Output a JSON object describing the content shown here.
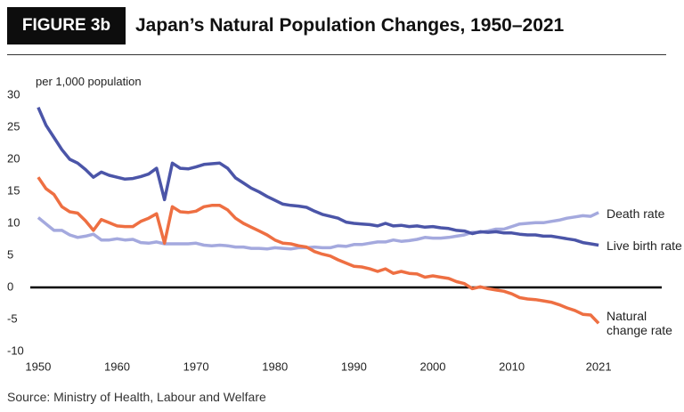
{
  "chart_data": {
    "type": "line",
    "figure_label": "FIGURE 3b",
    "title": "Japan’s Natural Population Changes, 1950–2021",
    "y_label": "per 1,000 population",
    "source": "Source: Ministry of Health, Labour and Welfare",
    "x": [
      1950,
      1951,
      1952,
      1953,
      1954,
      1955,
      1956,
      1957,
      1958,
      1959,
      1960,
      1961,
      1962,
      1963,
      1964,
      1965,
      1966,
      1967,
      1968,
      1969,
      1970,
      1971,
      1972,
      1973,
      1974,
      1975,
      1976,
      1977,
      1978,
      1979,
      1980,
      1981,
      1982,
      1983,
      1984,
      1985,
      1986,
      1987,
      1988,
      1989,
      1990,
      1991,
      1992,
      1993,
      1994,
      1995,
      1996,
      1997,
      1998,
      1999,
      2000,
      2001,
      2002,
      2003,
      2004,
      2005,
      2006,
      2007,
      2008,
      2009,
      2010,
      2011,
      2012,
      2013,
      2014,
      2015,
      2016,
      2017,
      2018,
      2019,
      2020,
      2021
    ],
    "series": [
      {
        "name": "Death rate",
        "color": "#a4a9de",
        "values": [
          10.9,
          9.9,
          8.9,
          8.9,
          8.2,
          7.8,
          8.0,
          8.3,
          7.4,
          7.4,
          7.6,
          7.4,
          7.5,
          7.0,
          6.9,
          7.1,
          6.8,
          6.8,
          6.8,
          6.8,
          6.9,
          6.6,
          6.5,
          6.6,
          6.5,
          6.3,
          6.3,
          6.1,
          6.1,
          6.0,
          6.2,
          6.1,
          6.0,
          6.2,
          6.2,
          6.3,
          6.2,
          6.2,
          6.5,
          6.4,
          6.7,
          6.7,
          6.9,
          7.1,
          7.1,
          7.4,
          7.2,
          7.3,
          7.5,
          7.8,
          7.7,
          7.7,
          7.8,
          8.0,
          8.2,
          8.6,
          8.6,
          8.8,
          9.1,
          9.1,
          9.5,
          9.9,
          10.0,
          10.1,
          10.1,
          10.3,
          10.5,
          10.8,
          11.0,
          11.2,
          11.1,
          11.7
        ]
      },
      {
        "name": "Live birth rate",
        "color": "#4b55a8",
        "values": [
          28.1,
          25.3,
          23.4,
          21.5,
          20.0,
          19.4,
          18.4,
          17.2,
          18.0,
          17.5,
          17.2,
          16.9,
          17.0,
          17.3,
          17.7,
          18.6,
          13.7,
          19.4,
          18.6,
          18.5,
          18.8,
          19.2,
          19.3,
          19.4,
          18.6,
          17.1,
          16.3,
          15.5,
          14.9,
          14.2,
          13.6,
          13.0,
          12.8,
          12.7,
          12.5,
          11.9,
          11.4,
          11.1,
          10.8,
          10.2,
          10.0,
          9.9,
          9.8,
          9.6,
          10.0,
          9.6,
          9.7,
          9.5,
          9.6,
          9.4,
          9.5,
          9.3,
          9.2,
          8.9,
          8.8,
          8.4,
          8.7,
          8.6,
          8.7,
          8.5,
          8.5,
          8.3,
          8.2,
          8.2,
          8.0,
          8.0,
          7.8,
          7.6,
          7.4,
          7.0,
          6.8,
          6.6
        ]
      },
      {
        "name": "Natural change rate",
        "color": "#ee6f42",
        "values": [
          17.2,
          15.4,
          14.5,
          12.6,
          11.8,
          11.6,
          10.4,
          8.9,
          10.6,
          10.1,
          9.6,
          9.5,
          9.5,
          10.3,
          10.8,
          11.5,
          6.9,
          12.6,
          11.8,
          11.7,
          11.9,
          12.6,
          12.8,
          12.8,
          12.1,
          10.8,
          10.0,
          9.4,
          8.8,
          8.2,
          7.4,
          6.9,
          6.8,
          6.5,
          6.3,
          5.6,
          5.2,
          4.9,
          4.3,
          3.8,
          3.3,
          3.2,
          2.9,
          2.5,
          2.9,
          2.2,
          2.5,
          2.2,
          2.1,
          1.6,
          1.8,
          1.6,
          1.4,
          0.9,
          0.6,
          -0.2,
          0.1,
          -0.2,
          -0.4,
          -0.6,
          -1.0,
          -1.6,
          -1.8,
          -1.9,
          -2.1,
          -2.3,
          -2.7,
          -3.2,
          -3.6,
          -4.2,
          -4.3,
          -5.6
        ]
      }
    ],
    "xlim": [
      1949,
      2029
    ],
    "xticks": [
      1950,
      1960,
      1970,
      1980,
      1990,
      2000,
      2010,
      2021
    ],
    "ylim": [
      -10,
      30
    ],
    "yticks": [
      -10,
      -5,
      0,
      5,
      10,
      15,
      20,
      25,
      30
    ],
    "grid": false
  }
}
